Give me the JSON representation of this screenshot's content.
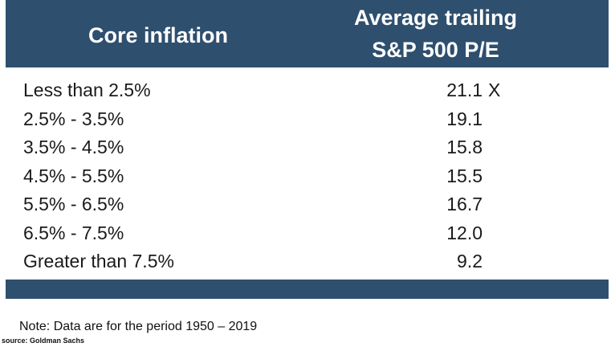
{
  "table": {
    "header": {
      "col1": "Core inflation",
      "col2_line1": "Average trailing",
      "col2_line2": "S&P 500 P/E"
    },
    "rows": [
      {
        "label": "Less than 2.5%",
        "value": "21.1",
        "suffix": "X"
      },
      {
        "label": "2.5% - 3.5%",
        "value": "19.1",
        "suffix": ""
      },
      {
        "label": "3.5% - 4.5%",
        "value": "15.8",
        "suffix": ""
      },
      {
        "label": "4.5% - 5.5%",
        "value": "15.5",
        "suffix": ""
      },
      {
        "label": "5.5% - 6.5%",
        "value": "16.7",
        "suffix": ""
      },
      {
        "label": "6.5% - 7.5%",
        "value": "12.0",
        "suffix": ""
      },
      {
        "label": "Greater than 7.5%",
        "value": "9.2",
        "suffix": ""
      }
    ]
  },
  "note": "Note: Data are for the period 1950 – 2019",
  "source": "source: Goldman Sachs",
  "colors": {
    "header_bg": "#2e4f6e",
    "header_text": "#ffffff",
    "body_text": "#1a1a1a"
  },
  "chart_data": {
    "type": "table",
    "columns": [
      "Core inflation",
      "Average trailing S&P 500 P/E"
    ],
    "categories": [
      "Less than 2.5%",
      "2.5% - 3.5%",
      "3.5% - 4.5%",
      "4.5% - 5.5%",
      "5.5% - 6.5%",
      "6.5% - 7.5%",
      "Greater than 7.5%"
    ],
    "values": [
      21.1,
      19.1,
      15.8,
      15.5,
      16.7,
      12.0,
      9.2
    ]
  }
}
